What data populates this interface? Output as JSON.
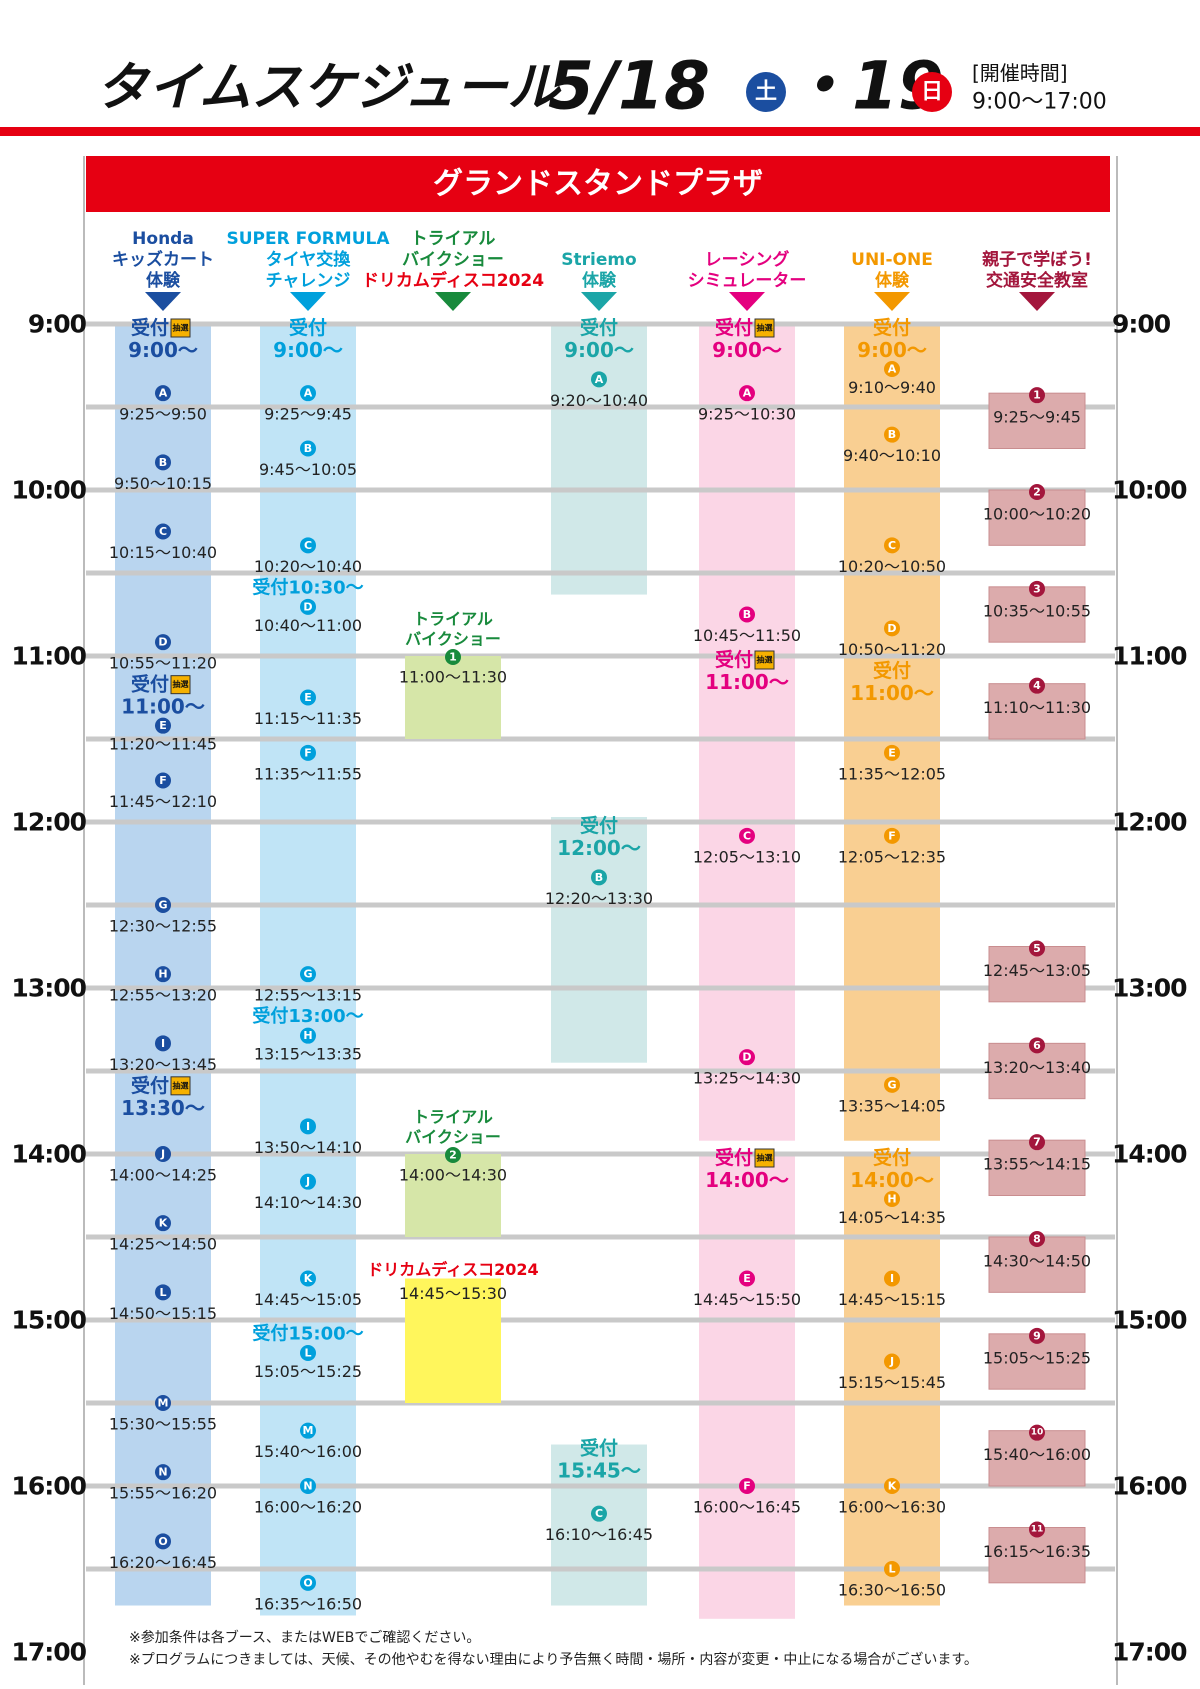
{
  "header": {
    "title": "タイムスケジュール",
    "date1": "5/18",
    "day1": "土",
    "date2": "・19",
    "day2": "日",
    "hours_label": "[開催時間]",
    "hours": "9:00〜17:00"
  },
  "section_title": "グランドスタンドプラザ",
  "hours": [
    "9:00",
    "10:00",
    "11:00",
    "12:00",
    "13:00",
    "14:00",
    "15:00",
    "16:00",
    "17:00"
  ],
  "columns": [
    {
      "header": [
        "Honda",
        "キッズカート",
        "体験"
      ],
      "color": "#1b4ea0",
      "bar": "#b9d5ef",
      "items": [
        {
          "label": "受付",
          "lottery": "抽選",
          "time": "9:00〜"
        },
        {
          "badge": "A",
          "time": "9:25〜9:50"
        },
        {
          "badge": "B",
          "time": "9:50〜10:15"
        },
        {
          "badge": "C",
          "time": "10:15〜10:40"
        },
        {
          "badge": "D",
          "time": "10:55〜11:20"
        },
        {
          "label": "受付",
          "lottery": "抽選",
          "time": "11:00〜"
        },
        {
          "badge": "E",
          "time": "11:20〜11:45"
        },
        {
          "badge": "F",
          "time": "11:45〜12:10"
        },
        {
          "badge": "G",
          "time": "12:30〜12:55"
        },
        {
          "badge": "H",
          "time": "12:55〜13:20"
        },
        {
          "badge": "I",
          "time": "13:20〜13:45"
        },
        {
          "label": "受付",
          "lottery": "抽選",
          "time": "13:30〜"
        },
        {
          "badge": "J",
          "time": "14:00〜14:25"
        },
        {
          "badge": "K",
          "time": "14:25〜14:50"
        },
        {
          "badge": "L",
          "time": "14:50〜15:15"
        },
        {
          "badge": "M",
          "time": "15:30〜15:55"
        },
        {
          "badge": "N",
          "time": "15:55〜16:20"
        },
        {
          "badge": "O",
          "time": "16:20〜16:45"
        }
      ]
    },
    {
      "header": [
        "SUPER FORMULA",
        "タイヤ交換",
        "チャレンジ"
      ],
      "color": "#00a0dc",
      "bar": "#c0e4f6",
      "items": [
        {
          "label": "受付",
          "time": "9:00〜"
        },
        {
          "badge": "A",
          "time": "9:25〜9:45"
        },
        {
          "badge": "B",
          "time": "9:45〜10:05"
        },
        {
          "badge": "C",
          "time": "10:20〜10:40"
        },
        {
          "label": "受付10:30〜"
        },
        {
          "badge": "D",
          "time": "10:40〜11:00"
        },
        {
          "badge": "E",
          "time": "11:15〜11:35"
        },
        {
          "badge": "F",
          "time": "11:35〜11:55"
        },
        {
          "badge": "G",
          "time": "12:55〜13:15"
        },
        {
          "label": "受付13:00〜"
        },
        {
          "badge": "H",
          "time": "13:15〜13:35"
        },
        {
          "badge": "I",
          "time": "13:50〜14:10"
        },
        {
          "badge": "J",
          "time": "14:10〜14:30"
        },
        {
          "badge": "K",
          "time": "14:45〜15:05"
        },
        {
          "label": "受付15:00〜"
        },
        {
          "badge": "L",
          "time": "15:05〜15:25"
        },
        {
          "badge": "M",
          "time": "15:40〜16:00"
        },
        {
          "badge": "N",
          "time": "16:00〜16:20"
        },
        {
          "badge": "O",
          "time": "16:35〜16:50"
        }
      ]
    },
    {
      "header": [
        "トライアル",
        "バイクショー",
        "ドリカムディスコ2024"
      ],
      "header_colors": [
        "#188a3c",
        "#188a3c",
        "#e60012"
      ],
      "color": "#188a3c",
      "items": [
        {
          "title": [
            "トライアル",
            "バイクショー"
          ],
          "badge": "1",
          "time": "11:00〜11:30",
          "fill": "#d6e6a8"
        },
        {
          "title": [
            "トライアル",
            "バイクショー"
          ],
          "badge": "2",
          "time": "14:00〜14:30",
          "fill": "#d6e6a8"
        },
        {
          "title": [
            "ドリカムディスコ2024"
          ],
          "title_color": "#e60012",
          "time": "14:45〜15:30",
          "fill": "#fff65c"
        }
      ]
    },
    {
      "header": [
        "Striemo",
        "体験"
      ],
      "color": "#1ba5a7",
      "bar": "#d0e8e8",
      "items": [
        {
          "label": "受付",
          "time": "9:00〜"
        },
        {
          "badge": "A",
          "time": "9:20〜10:40"
        },
        {
          "label": "受付",
          "time": "12:00〜"
        },
        {
          "badge": "B",
          "time": "12:20〜13:30"
        },
        {
          "label": "受付",
          "time": "15:45〜"
        },
        {
          "badge": "C",
          "time": "16:10〜16:45"
        }
      ]
    },
    {
      "header": [
        "レーシング",
        "シミュレーター"
      ],
      "color": "#e4007f",
      "bar": "#fbd6e6",
      "items": [
        {
          "label": "受付",
          "lottery": "抽選",
          "time": "9:00〜"
        },
        {
          "badge": "A",
          "time": "9:25〜10:30"
        },
        {
          "badge": "B",
          "time": "10:45〜11:50"
        },
        {
          "label": "受付",
          "lottery": "抽選",
          "time": "11:00〜"
        },
        {
          "badge": "C",
          "time": "12:05〜13:10"
        },
        {
          "badge": "D",
          "time": "13:25〜14:30"
        },
        {
          "label": "受付",
          "lottery": "抽選",
          "time": "14:00〜"
        },
        {
          "badge": "E",
          "time": "14:45〜15:50"
        },
        {
          "badge": "F",
          "time": "16:00〜16:45"
        }
      ]
    },
    {
      "header": [
        "UNI-ONE",
        "体験"
      ],
      "color": "#f39800",
      "bar": "#f9cf92",
      "items": [
        {
          "label": "受付",
          "time": "9:00〜"
        },
        {
          "badge": "A",
          "time": "9:10〜9:40"
        },
        {
          "badge": "B",
          "time": "9:40〜10:10"
        },
        {
          "badge": "C",
          "time": "10:20〜10:50"
        },
        {
          "badge": "D",
          "time": "10:50〜11:20"
        },
        {
          "label": "受付",
          "time": "11:00〜"
        },
        {
          "badge": "E",
          "time": "11:35〜12:05"
        },
        {
          "badge": "F",
          "time": "12:05〜12:35"
        },
        {
          "badge": "G",
          "time": "13:35〜14:05"
        },
        {
          "label": "受付",
          "time": "14:00〜"
        },
        {
          "badge": "H",
          "time": "14:05〜14:35"
        },
        {
          "badge": "I",
          "time": "14:45〜15:15"
        },
        {
          "badge": "J",
          "time": "15:15〜15:45"
        },
        {
          "badge": "K",
          "time": "16:00〜16:30"
        },
        {
          "badge": "L",
          "time": "16:30〜16:50"
        }
      ]
    },
    {
      "header": [
        "親子で学ぼう!",
        "交通安全教室"
      ],
      "color": "#a3163c",
      "box_fill": "#dcabac",
      "items": [
        {
          "badge": "1",
          "time": "9:25〜9:45"
        },
        {
          "badge": "2",
          "time": "10:00〜10:20"
        },
        {
          "badge": "3",
          "time": "10:35〜10:55"
        },
        {
          "badge": "4",
          "time": "11:10〜11:30"
        },
        {
          "badge": "5",
          "time": "12:45〜13:05"
        },
        {
          "badge": "6",
          "time": "13:20〜13:40"
        },
        {
          "badge": "7",
          "time": "13:55〜14:15"
        },
        {
          "badge": "8",
          "time": "14:30〜14:50"
        },
        {
          "badge": "9",
          "time": "15:05〜15:25"
        },
        {
          "badge": "10",
          "time": "15:40〜16:00"
        },
        {
          "badge": "11",
          "time": "16:15〜16:35"
        }
      ]
    }
  ],
  "notes": [
    "※参加条件は各ブース、またはWEBでご確認ください。",
    "※プログラムにつきましては、天候、その他やむを得ない理由により予告無く時間・場所・内容が変更・中止になる場合がございます。"
  ]
}
